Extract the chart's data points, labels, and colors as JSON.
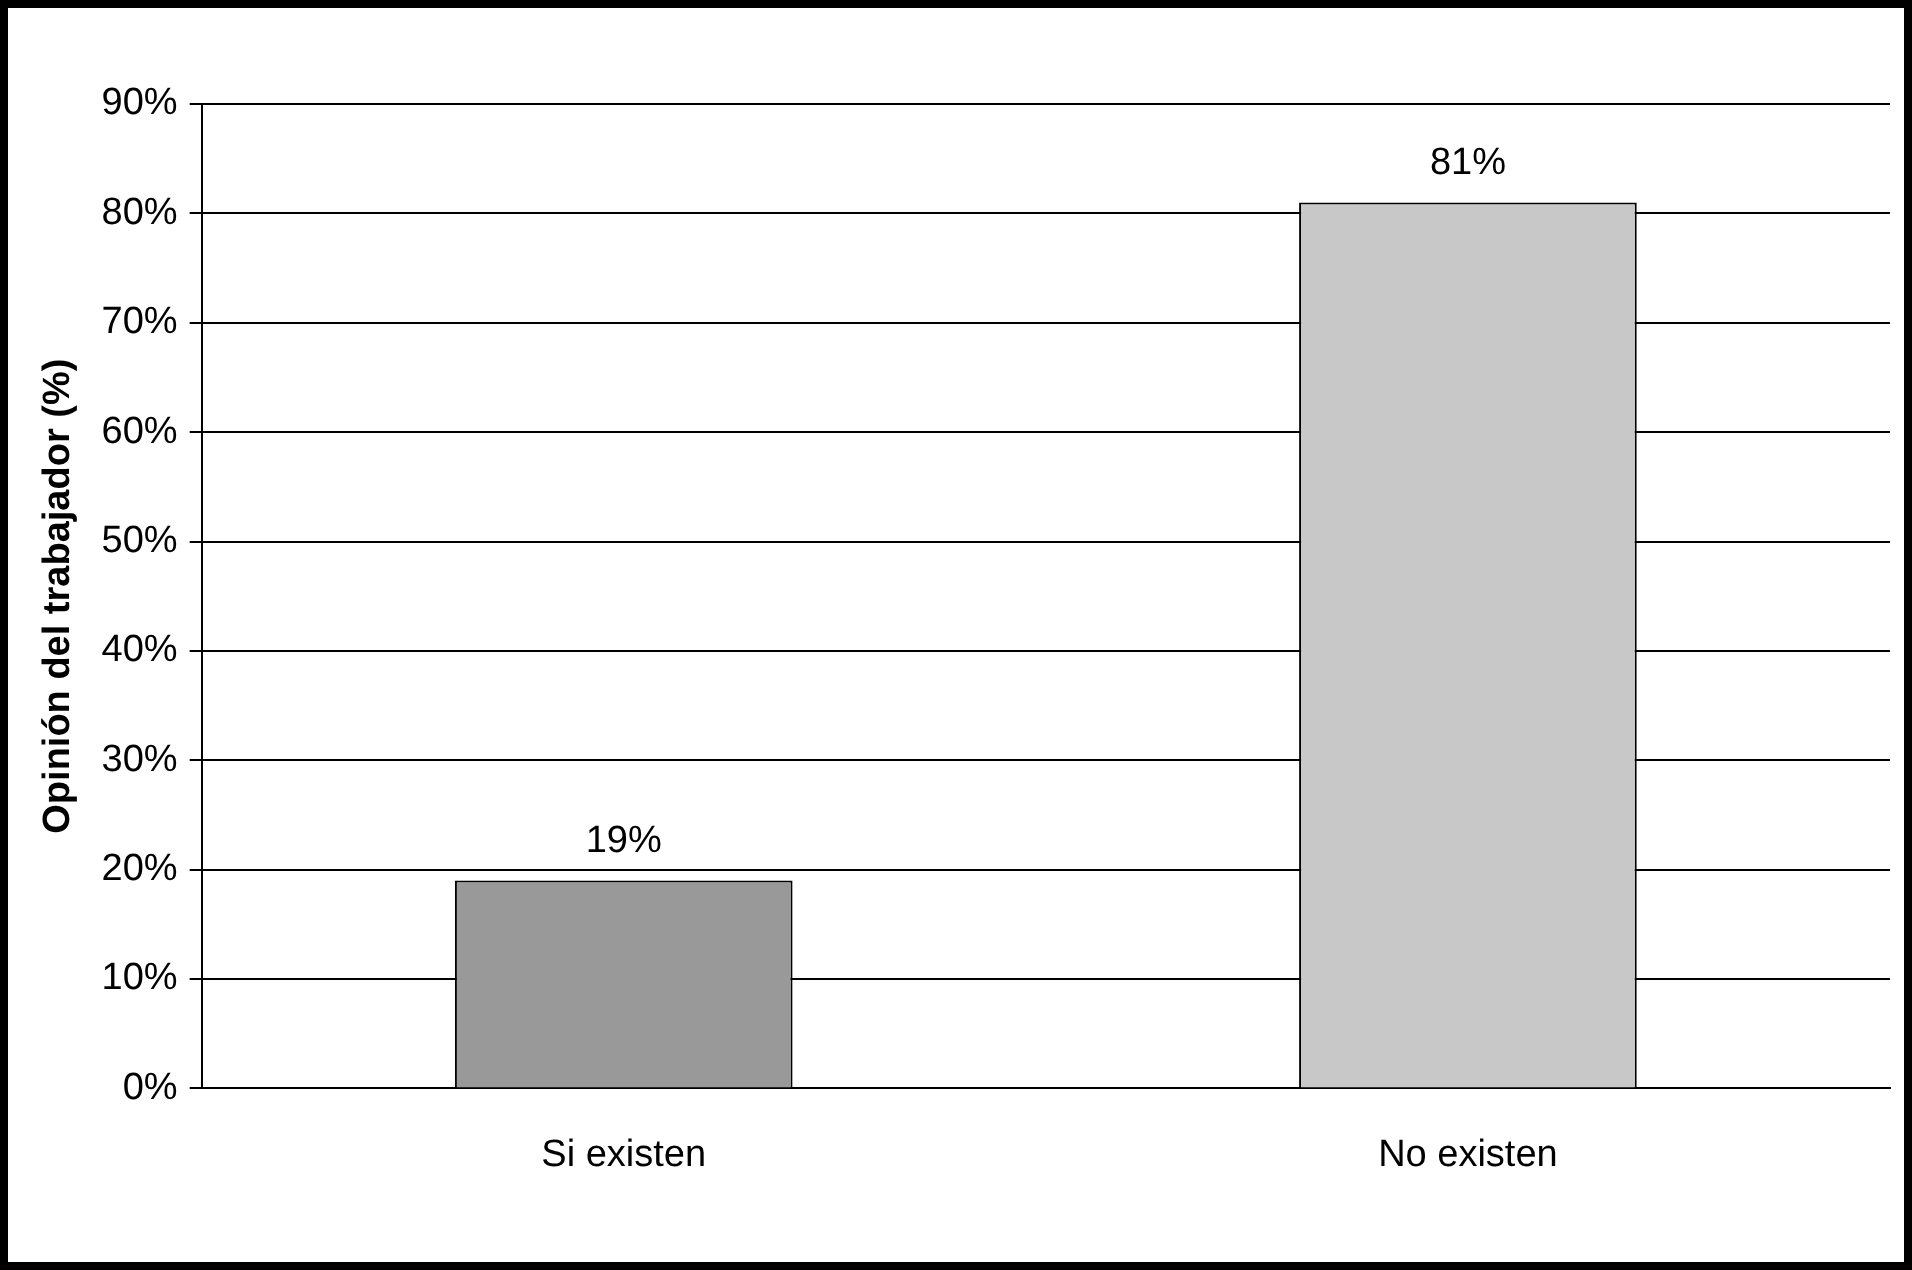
{
  "chart_data": {
    "type": "bar",
    "ylabel": "Opinión del trabajador (%)",
    "categories": [
      "Si existen",
      "No existen"
    ],
    "values": [
      19,
      81
    ],
    "colors": [
      "#999999",
      "#c8c8c8"
    ],
    "value_labels": [
      "19%",
      "81%"
    ],
    "ylim": [
      0,
      90
    ],
    "yticks": [
      {
        "value": 0,
        "label": "0%"
      },
      {
        "value": 10,
        "label": "10%"
      },
      {
        "value": 20,
        "label": "20%"
      },
      {
        "value": 30,
        "label": "30%"
      },
      {
        "value": 40,
        "label": "40%"
      },
      {
        "value": 50,
        "label": "50%"
      },
      {
        "value": 60,
        "label": "60%"
      },
      {
        "value": 70,
        "label": "70%"
      },
      {
        "value": 80,
        "label": "80%"
      },
      {
        "value": 90,
        "label": "90%"
      }
    ],
    "grid": "y"
  }
}
